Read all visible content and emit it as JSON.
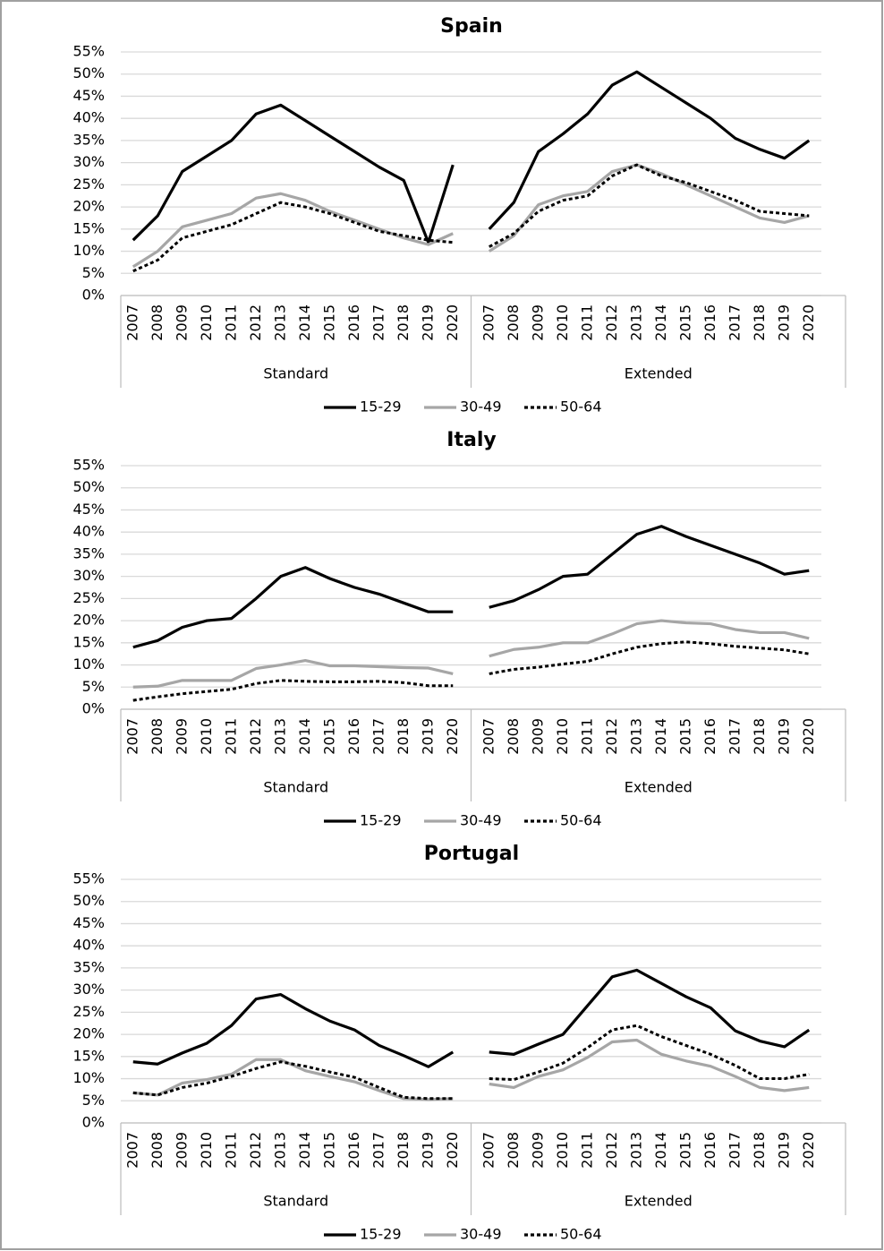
{
  "chart_data": [
    {
      "type": "line",
      "title": "Spain",
      "categories": [
        "2007",
        "2008",
        "2009",
        "2010",
        "2011",
        "2012",
        "2013",
        "2014",
        "2015",
        "2016",
        "2017",
        "2018",
        "2019",
        "2020",
        "2007",
        "2008",
        "2009",
        "2010",
        "2011",
        "2012",
        "2013",
        "2014",
        "2015",
        "2016",
        "2017",
        "2018",
        "2019",
        "2020"
      ],
      "category_groups": [
        "Standard",
        "Extended"
      ],
      "series": [
        {
          "name": "15-29",
          "color": "#000000",
          "line_style": "solid",
          "values": [
            12.5,
            18,
            28,
            31.5,
            35,
            41,
            43,
            39.5,
            36,
            32.5,
            29,
            26,
            12,
            29.5,
            15,
            21,
            32.5,
            36.5,
            41,
            47.5,
            50.5,
            47,
            43.5,
            40,
            35.5,
            33,
            31,
            35
          ]
        },
        {
          "name": "30-49",
          "color": "#a6a6a6",
          "line_style": "solid",
          "values": [
            6.5,
            10,
            15.5,
            17,
            18.5,
            22,
            23,
            21.5,
            19,
            17,
            15,
            13,
            11.5,
            14,
            10,
            13.5,
            20.5,
            22.5,
            23.5,
            28,
            29.5,
            27.5,
            25,
            22.5,
            20,
            17.5,
            16.5,
            18
          ]
        },
        {
          "name": "50-64",
          "color": "#000000",
          "line_style": "dotted",
          "values": [
            5.5,
            8,
            13,
            14.5,
            16,
            18.5,
            21,
            20,
            18.5,
            16.5,
            14.5,
            13.5,
            12.5,
            12,
            11,
            14,
            19,
            21.5,
            22.5,
            27,
            29.5,
            27,
            25.5,
            23.5,
            21.5,
            19,
            18.5,
            18
          ]
        }
      ],
      "ylim": [
        0,
        55
      ],
      "yticks": [
        {
          "value": 0,
          "label": "0%"
        },
        {
          "value": 5,
          "label": "5%"
        },
        {
          "value": 10,
          "label": "10%"
        },
        {
          "value": 15,
          "label": "15%"
        },
        {
          "value": 20,
          "label": "20%"
        },
        {
          "value": 25,
          "label": "25%"
        },
        {
          "value": 30,
          "label": "30%"
        },
        {
          "value": 35,
          "label": "35%"
        },
        {
          "value": 40,
          "label": "40%"
        },
        {
          "value": 45,
          "label": "45%"
        },
        {
          "value": 50,
          "label": "50%"
        },
        {
          "value": 55,
          "label": "55%"
        }
      ],
      "grid": true,
      "legend": "bottom"
    },
    {
      "type": "line",
      "title": "Italy",
      "categories": [
        "2007",
        "2008",
        "2009",
        "2010",
        "2011",
        "2012",
        "2013",
        "2014",
        "2015",
        "2016",
        "2017",
        "2018",
        "2019",
        "2020",
        "2007",
        "2008",
        "2009",
        "2010",
        "2011",
        "2012",
        "2013",
        "2014",
        "2015",
        "2016",
        "2017",
        "2018",
        "2019",
        "2020"
      ],
      "category_groups": [
        "Standard",
        "Extended"
      ],
      "series": [
        {
          "name": "15-29",
          "color": "#000000",
          "line_style": "solid",
          "values": [
            14,
            15.5,
            18.5,
            20,
            20.5,
            25,
            30,
            32,
            29.5,
            27.5,
            26,
            24,
            22,
            22,
            23,
            24.5,
            27,
            30,
            30.5,
            35,
            39.5,
            41.3,
            39,
            37,
            35,
            33,
            30.5,
            31.3
          ]
        },
        {
          "name": "30-49",
          "color": "#a6a6a6",
          "line_style": "solid",
          "values": [
            5,
            5.2,
            6.5,
            6.5,
            6.5,
            9.2,
            10,
            11,
            9.8,
            9.8,
            9.6,
            9.4,
            9.3,
            8,
            12,
            13.5,
            14,
            15,
            15,
            17,
            19.3,
            20,
            19.5,
            19.3,
            18,
            17.3,
            17.3,
            16
          ]
        },
        {
          "name": "50-64",
          "color": "#000000",
          "line_style": "dotted",
          "values": [
            2,
            2.8,
            3.5,
            4,
            4.5,
            5.8,
            6.5,
            6.3,
            6.2,
            6.2,
            6.3,
            6,
            5.3,
            5.3,
            8,
            9,
            9.5,
            10.2,
            10.8,
            12.5,
            14,
            14.8,
            15.2,
            14.8,
            14.2,
            13.8,
            13.4,
            12.5
          ]
        }
      ],
      "ylim": [
        0,
        55
      ],
      "yticks": [
        {
          "value": 0,
          "label": "0%"
        },
        {
          "value": 5,
          "label": "5%"
        },
        {
          "value": 10,
          "label": "10%"
        },
        {
          "value": 15,
          "label": "15%"
        },
        {
          "value": 20,
          "label": "20%"
        },
        {
          "value": 25,
          "label": "25%"
        },
        {
          "value": 30,
          "label": "30%"
        },
        {
          "value": 35,
          "label": "35%"
        },
        {
          "value": 40,
          "label": "40%"
        },
        {
          "value": 45,
          "label": "45%"
        },
        {
          "value": 50,
          "label": "50%"
        },
        {
          "value": 55,
          "label": "55%"
        }
      ],
      "grid": true,
      "legend": "bottom"
    },
    {
      "type": "line",
      "title": "Portugal",
      "categories": [
        "2007",
        "2008",
        "2009",
        "2010",
        "2011",
        "2012",
        "2013",
        "2014",
        "2015",
        "2016",
        "2017",
        "2018",
        "2019",
        "2020",
        "2007",
        "2008",
        "2009",
        "2010",
        "2011",
        "2012",
        "2013",
        "2014",
        "2015",
        "2016",
        "2017",
        "2018",
        "2019",
        "2020"
      ],
      "category_groups": [
        "Standard",
        "Extended"
      ],
      "series": [
        {
          "name": "15-29",
          "color": "#000000",
          "line_style": "solid",
          "values": [
            13.8,
            13.3,
            15.8,
            18,
            22,
            28,
            29,
            25.8,
            23,
            21,
            17.5,
            15.2,
            12.7,
            16,
            16,
            15.5,
            17.8,
            20,
            26.5,
            33,
            34.5,
            31.5,
            28.5,
            26,
            20.8,
            18.5,
            17.2,
            21
          ]
        },
        {
          "name": "30-49",
          "color": "#a6a6a6",
          "line_style": "solid",
          "values": [
            6.8,
            6.3,
            9,
            9.8,
            11,
            14.3,
            14.3,
            11.8,
            10.5,
            9.3,
            7.3,
            5.5,
            5.3,
            5.5,
            8.8,
            8,
            10.5,
            12,
            14.8,
            18.3,
            18.7,
            15.5,
            14,
            12.8,
            10.5,
            8,
            7.3,
            8
          ]
        },
        {
          "name": "50-64",
          "color": "#000000",
          "line_style": "dotted",
          "values": [
            6.8,
            6.3,
            8,
            9,
            10.5,
            12.3,
            13.8,
            12.8,
            11.5,
            10.3,
            8,
            5.8,
            5.5,
            5.5,
            10,
            9.8,
            11.5,
            13.5,
            17,
            21,
            22,
            19.5,
            17.5,
            15.5,
            13,
            10,
            10,
            11
          ]
        }
      ],
      "ylim": [
        0,
        55
      ],
      "yticks": [
        {
          "value": 0,
          "label": "0%"
        },
        {
          "value": 5,
          "label": "5%"
        },
        {
          "value": 10,
          "label": "10%"
        },
        {
          "value": 15,
          "label": "15%"
        },
        {
          "value": 20,
          "label": "20%"
        },
        {
          "value": 25,
          "label": "25%"
        },
        {
          "value": 30,
          "label": "30%"
        },
        {
          "value": 35,
          "label": "35%"
        },
        {
          "value": 40,
          "label": "40%"
        },
        {
          "value": 45,
          "label": "45%"
        },
        {
          "value": 50,
          "label": "50%"
        },
        {
          "value": 55,
          "label": "55%"
        }
      ],
      "grid": true,
      "legend": "bottom"
    }
  ]
}
